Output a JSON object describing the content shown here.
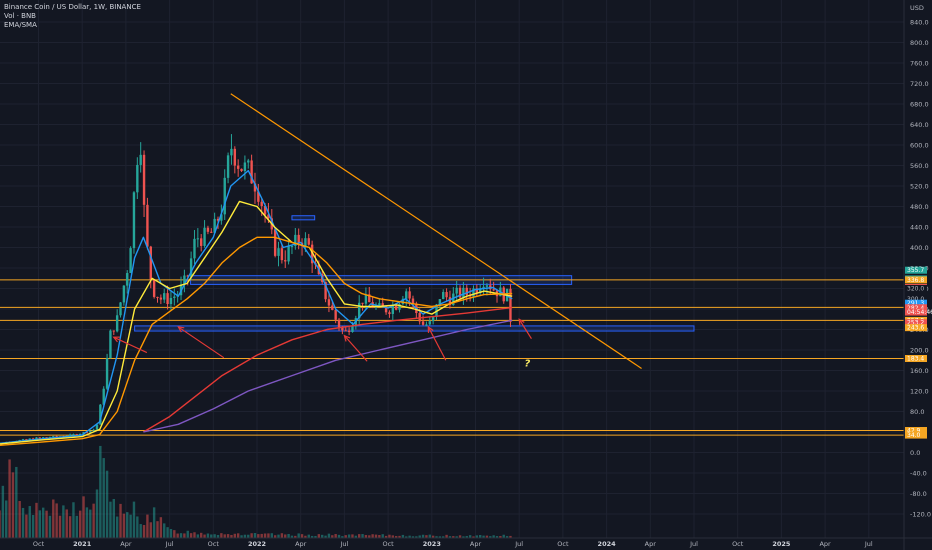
{
  "legend": {
    "line1": "Binance Coin / US Dollar, 1W, BINANCE",
    "line2": "Vol · BNB",
    "line3": "EMA/SMA"
  },
  "colors": {
    "background": "#131722",
    "grid": "#1e2230",
    "up": "#26a69a",
    "down": "#ef5350",
    "ema_blue": "#2196f3",
    "ema_yellow": "#ffeb3b",
    "ema_orange": "#ff9800",
    "sma_red": "#e53935",
    "sma_purple": "#7e57c2",
    "level_line": "#f5a623",
    "trendline": "#ff9800",
    "zone": "#2962ff",
    "arrow": "#e53935",
    "question": "#f5e663"
  },
  "chart_data": {
    "type": "candlestick",
    "symbol": "Binance Coin / US Dollar",
    "interval": "1W",
    "exchange": "BINANCE",
    "currency": "USD",
    "ylim": [
      -140,
      880
    ],
    "y_ticks": [
      840,
      800,
      760,
      720,
      680,
      640,
      600,
      560,
      520,
      480,
      440,
      400,
      360,
      320,
      280,
      240,
      200,
      160,
      120,
      80,
      40,
      0,
      -40,
      -80,
      -120
    ],
    "x_labels": [
      {
        "t": 2020.75,
        "label": "Oct",
        "year": false
      },
      {
        "t": 2021.0,
        "label": "2021",
        "year": true
      },
      {
        "t": 2021.25,
        "label": "Apr",
        "year": false
      },
      {
        "t": 2021.5,
        "label": "Jul",
        "year": false
      },
      {
        "t": 2021.75,
        "label": "Oct",
        "year": false
      },
      {
        "t": 2022.0,
        "label": "2022",
        "year": true
      },
      {
        "t": 2022.25,
        "label": "Apr",
        "year": false
      },
      {
        "t": 2022.5,
        "label": "Jul",
        "year": false
      },
      {
        "t": 2022.75,
        "label": "Oct",
        "year": false
      },
      {
        "t": 2023.0,
        "label": "2023",
        "year": true
      },
      {
        "t": 2023.25,
        "label": "Apr",
        "year": false
      },
      {
        "t": 2023.5,
        "label": "Jul",
        "year": false
      },
      {
        "t": 2023.75,
        "label": "Oct",
        "year": false
      },
      {
        "t": 2024.0,
        "label": "2024",
        "year": true
      },
      {
        "t": 2024.25,
        "label": "Apr",
        "year": false
      },
      {
        "t": 2024.5,
        "label": "Jul",
        "year": false
      },
      {
        "t": 2024.75,
        "label": "Oct",
        "year": false
      },
      {
        "t": 2025.0,
        "label": "2025",
        "year": true
      },
      {
        "t": 2025.25,
        "label": "Apr",
        "year": false
      },
      {
        "t": 2025.5,
        "label": "Jul",
        "year": false
      }
    ],
    "price_path": [
      [
        2020.45,
        15
      ],
      [
        2020.6,
        22
      ],
      [
        2020.75,
        29
      ],
      [
        2020.9,
        32
      ],
      [
        2021.0,
        38
      ],
      [
        2021.08,
        46
      ],
      [
        2021.12,
        120
      ],
      [
        2021.16,
        230
      ],
      [
        2021.2,
        260
      ],
      [
        2021.27,
        380
      ],
      [
        2021.3,
        520
      ],
      [
        2021.33,
        640
      ],
      [
        2021.36,
        430
      ],
      [
        2021.4,
        320
      ],
      [
        2021.45,
        300
      ],
      [
        2021.5,
        300
      ],
      [
        2021.55,
        310
      ],
      [
        2021.6,
        340
      ],
      [
        2021.65,
        420
      ],
      [
        2021.7,
        420
      ],
      [
        2021.75,
        430
      ],
      [
        2021.8,
        480
      ],
      [
        2021.85,
        600
      ],
      [
        2021.9,
        560
      ],
      [
        2021.95,
        550
      ],
      [
        2022.0,
        520
      ],
      [
        2022.05,
        460
      ],
      [
        2022.1,
        400
      ],
      [
        2022.15,
        380
      ],
      [
        2022.2,
        400
      ],
      [
        2022.25,
        420
      ],
      [
        2022.3,
        400
      ],
      [
        2022.35,
        340
      ],
      [
        2022.4,
        300
      ],
      [
        2022.45,
        260
      ],
      [
        2022.5,
        230
      ],
      [
        2022.55,
        260
      ],
      [
        2022.6,
        300
      ],
      [
        2022.65,
        290
      ],
      [
        2022.7,
        280
      ],
      [
        2022.75,
        280
      ],
      [
        2022.8,
        290
      ],
      [
        2022.85,
        320
      ],
      [
        2022.9,
        280
      ],
      [
        2022.95,
        250
      ],
      [
        2023.0,
        250
      ],
      [
        2023.05,
        310
      ],
      [
        2023.1,
        300
      ],
      [
        2023.15,
        310
      ],
      [
        2023.2,
        310
      ],
      [
        2023.25,
        320
      ],
      [
        2023.3,
        340
      ],
      [
        2023.35,
        320
      ],
      [
        2023.4,
        310
      ],
      [
        2023.45,
        303
      ],
      [
        2023.46,
        255
      ]
    ],
    "volume_path": [
      [
        2020.45,
        0.6
      ],
      [
        2020.5,
        0.2
      ],
      [
        2020.6,
        1.3
      ],
      [
        2020.7,
        0.4
      ],
      [
        2020.8,
        0.5
      ],
      [
        2020.9,
        0.4
      ],
      [
        2021.0,
        0.6
      ],
      [
        2021.05,
        0.4
      ],
      [
        2021.1,
        1.2
      ],
      [
        2021.15,
        0.9
      ],
      [
        2021.2,
        0.5
      ],
      [
        2021.25,
        0.3
      ],
      [
        2021.3,
        0.5
      ],
      [
        2021.35,
        0.3
      ],
      [
        2021.4,
        0.4
      ],
      [
        2021.5,
        0.12
      ],
      [
        2021.7,
        0.08
      ],
      [
        2022.0,
        0.06
      ],
      [
        2022.5,
        0.05
      ],
      [
        2023.0,
        0.04
      ],
      [
        2023.46,
        0.04
      ]
    ],
    "series": [
      {
        "name": "EMA fast",
        "color": "#2196f3",
        "points": [
          [
            2020.45,
            15
          ],
          [
            2020.75,
            26
          ],
          [
            2021.0,
            34
          ],
          [
            2021.1,
            60
          ],
          [
            2021.2,
            190
          ],
          [
            2021.3,
            380
          ],
          [
            2021.35,
            420
          ],
          [
            2021.45,
            330
          ],
          [
            2021.55,
            305
          ],
          [
            2021.65,
            370
          ],
          [
            2021.75,
            420
          ],
          [
            2021.85,
            520
          ],
          [
            2021.95,
            550
          ],
          [
            2022.05,
            480
          ],
          [
            2022.15,
            400
          ],
          [
            2022.25,
            410
          ],
          [
            2022.35,
            360
          ],
          [
            2022.45,
            280
          ],
          [
            2022.55,
            250
          ],
          [
            2022.65,
            290
          ],
          [
            2022.75,
            282
          ],
          [
            2022.85,
            300
          ],
          [
            2022.95,
            270
          ],
          [
            2023.05,
            290
          ],
          [
            2023.15,
            305
          ],
          [
            2023.25,
            318
          ],
          [
            2023.35,
            322
          ],
          [
            2023.46,
            300
          ]
        ]
      },
      {
        "name": "EMA mid",
        "color": "#ffeb3b",
        "points": [
          [
            2020.45,
            14
          ],
          [
            2020.75,
            24
          ],
          [
            2021.0,
            31
          ],
          [
            2021.1,
            45
          ],
          [
            2021.2,
            120
          ],
          [
            2021.3,
            280
          ],
          [
            2021.4,
            340
          ],
          [
            2021.5,
            320
          ],
          [
            2021.6,
            330
          ],
          [
            2021.7,
            380
          ],
          [
            2021.8,
            430
          ],
          [
            2021.9,
            490
          ],
          [
            2022.0,
            480
          ],
          [
            2022.1,
            440
          ],
          [
            2022.2,
            410
          ],
          [
            2022.3,
            400
          ],
          [
            2022.4,
            340
          ],
          [
            2022.5,
            290
          ],
          [
            2022.6,
            285
          ],
          [
            2022.7,
            285
          ],
          [
            2022.8,
            288
          ],
          [
            2022.9,
            280
          ],
          [
            2023.0,
            270
          ],
          [
            2023.1,
            290
          ],
          [
            2023.2,
            305
          ],
          [
            2023.3,
            315
          ],
          [
            2023.46,
            305
          ]
        ]
      },
      {
        "name": "EMA slow",
        "color": "#ff9800",
        "points": [
          [
            2020.45,
            12
          ],
          [
            2020.75,
            20
          ],
          [
            2021.0,
            27
          ],
          [
            2021.1,
            35
          ],
          [
            2021.2,
            80
          ],
          [
            2021.3,
            180
          ],
          [
            2021.4,
            250
          ],
          [
            2021.5,
            275
          ],
          [
            2021.6,
            300
          ],
          [
            2021.7,
            330
          ],
          [
            2021.8,
            370
          ],
          [
            2021.9,
            400
          ],
          [
            2022.0,
            420
          ],
          [
            2022.1,
            420
          ],
          [
            2022.2,
            410
          ],
          [
            2022.3,
            400
          ],
          [
            2022.4,
            370
          ],
          [
            2022.5,
            330
          ],
          [
            2022.6,
            310
          ],
          [
            2022.7,
            300
          ],
          [
            2022.8,
            295
          ],
          [
            2022.9,
            290
          ],
          [
            2023.0,
            285
          ],
          [
            2023.1,
            290
          ],
          [
            2023.2,
            300
          ],
          [
            2023.3,
            308
          ],
          [
            2023.46,
            310
          ]
        ]
      },
      {
        "name": "SMA red",
        "color": "#e53935",
        "points": [
          [
            2021.35,
            40
          ],
          [
            2021.5,
            70
          ],
          [
            2021.65,
            110
          ],
          [
            2021.8,
            150
          ],
          [
            2022.0,
            190
          ],
          [
            2022.2,
            220
          ],
          [
            2022.4,
            240
          ],
          [
            2022.6,
            250
          ],
          [
            2022.8,
            258
          ],
          [
            2023.0,
            265
          ],
          [
            2023.2,
            272
          ],
          [
            2023.46,
            283
          ]
        ]
      },
      {
        "name": "SMA purple",
        "color": "#7e57c2",
        "points": [
          [
            2021.35,
            40
          ],
          [
            2021.55,
            55
          ],
          [
            2021.75,
            85
          ],
          [
            2021.95,
            120
          ],
          [
            2022.2,
            150
          ],
          [
            2022.45,
            180
          ],
          [
            2022.7,
            200
          ],
          [
            2022.95,
            220
          ],
          [
            2023.2,
            240
          ],
          [
            2023.46,
            258
          ]
        ]
      }
    ],
    "horizontal_levels": [
      336.8,
      283.2,
      257.8,
      183.4,
      42.9,
      34.0
    ],
    "zones": [
      {
        "y1": 328,
        "y2": 345,
        "t1": 2021.62,
        "t2": 2023.8
      },
      {
        "y1": 237,
        "y2": 247,
        "t1": 2021.3,
        "t2": 2024.5
      },
      {
        "y1": 454,
        "y2": 462,
        "t1": 2022.2,
        "t2": 2022.33
      }
    ],
    "trendline": {
      "from": [
        2021.85,
        700
      ],
      "to": [
        2024.2,
        164
      ]
    },
    "arrows": [
      {
        "from": [
          2021.37,
          195
        ],
        "to": [
          2021.18,
          225
        ]
      },
      {
        "from": [
          2021.81,
          185
        ],
        "to": [
          2021.55,
          245
        ]
      },
      {
        "from": [
          2022.63,
          178
        ],
        "to": [
          2022.5,
          228
        ]
      },
      {
        "from": [
          2023.08,
          180
        ],
        "to": [
          2022.98,
          245
        ]
      },
      {
        "from": [
          2023.57,
          222
        ],
        "to": [
          2023.5,
          260
        ]
      }
    ],
    "annotation": {
      "t": 2023.53,
      "y": 168,
      "text": "?"
    },
    "price_badges": [
      {
        "y": 355.7,
        "text": "355.7",
        "bg": "#26a69a"
      },
      {
        "y": 338.7,
        "text": "338.7",
        "bg": "#26a69a"
      },
      {
        "y": 336.8,
        "text": "336.8",
        "bg": "#f5a623"
      },
      {
        "y": 321.9,
        "text": "321.9",
        "bg": "#ef5350"
      },
      {
        "y": 320.0,
        "text": "320.0",
        "bg": "#131722"
      },
      {
        "y": 300.0,
        "text": "300.0",
        "bg": "#131722"
      },
      {
        "y": 291.3,
        "text": "291.3",
        "bg": "#2196f3"
      },
      {
        "y": 282.4,
        "text": "282.4",
        "bg": "#ef5350"
      },
      {
        "y": 274.0,
        "text": "04:54:46",
        "bg": "#ef5350"
      },
      {
        "y": 257.8,
        "text": "257.8",
        "bg": "#f5a623"
      },
      {
        "y": 253.2,
        "text": "253.2",
        "bg": "#ef5350"
      },
      {
        "y": 243.6,
        "text": "243.6",
        "bg": "#f5a623"
      },
      {
        "y": 183.4,
        "text": "183.4",
        "bg": "#f5a623"
      },
      {
        "y": 42.9,
        "text": "42.9",
        "bg": "#f5a623"
      },
      {
        "y": 34.0,
        "text": "34.0",
        "bg": "#f5a623"
      }
    ]
  }
}
